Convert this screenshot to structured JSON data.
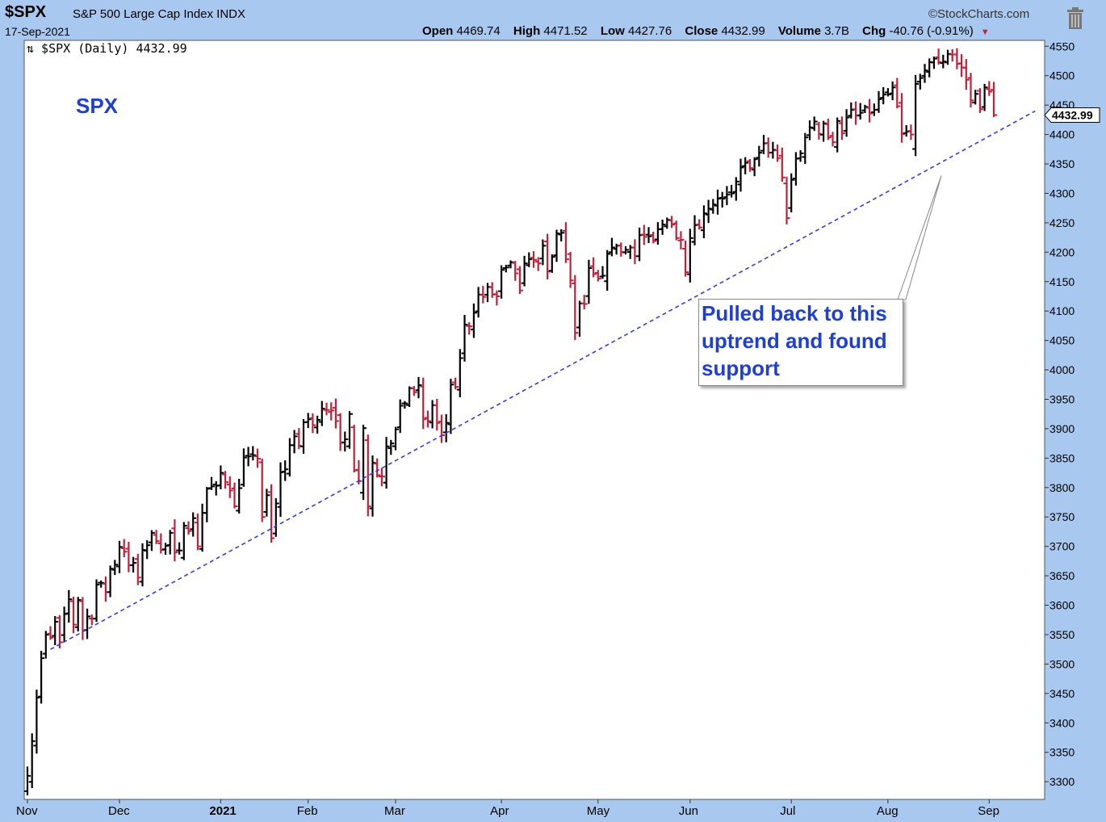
{
  "header": {
    "symbol": "$SPX",
    "description": "S&P 500 Large Cap Index INDX",
    "date": "17-Sep-2021",
    "brand": "©StockCharts.com",
    "open_label": "Open",
    "open": "4469.74",
    "high_label": "High",
    "high": "4471.52",
    "low_label": "Low",
    "low": "4427.76",
    "close_label": "Close",
    "close": "4432.99",
    "volume_label": "Volume",
    "volume": "3.7B",
    "chg_label": "Chg",
    "chg": "-40.76 (-0.91%)"
  },
  "annotation": "Pulled back to this\nuptrend and found\nsupport",
  "colors": {
    "up": "#000000",
    "down": "#c0203a",
    "trend": "#3b3bdc",
    "annotation": "#1e3fd4",
    "frame": "#a9c8ef"
  },
  "icons": {
    "trash": "trash-icon",
    "legend": "up-down-arrows-icon"
  },
  "chart_data": {
    "type": "ohlc",
    "legend_label": "$SPX (Daily) 4432.99",
    "symbol_label": "SPX",
    "last_value_label": "4432.99",
    "ylim": [
      3270,
      4560
    ],
    "y_ticks": [
      3300,
      3350,
      3400,
      3450,
      3500,
      3550,
      3600,
      3650,
      3700,
      3750,
      3800,
      3850,
      3900,
      3950,
      4000,
      4050,
      4100,
      4150,
      4200,
      4250,
      4300,
      4350,
      4400,
      4450,
      4500,
      4550
    ],
    "x_ticks": [
      {
        "label": "Nov",
        "date": "2020-11-02"
      },
      {
        "label": "Dec",
        "date": "2020-12-01"
      },
      {
        "label": "2021",
        "date": "2021-01-04",
        "bold": true
      },
      {
        "label": "Feb",
        "date": "2021-02-01"
      },
      {
        "label": "Mar",
        "date": "2021-03-01"
      },
      {
        "label": "Apr",
        "date": "2021-04-01"
      },
      {
        "label": "May",
        "date": "2021-05-03"
      },
      {
        "label": "Jun",
        "date": "2021-06-01"
      },
      {
        "label": "Jul",
        "date": "2021-07-01"
      },
      {
        "label": "Aug",
        "date": "2021-08-02"
      },
      {
        "label": "Sep",
        "date": "2021-09-01"
      }
    ],
    "trendline": {
      "start": {
        "date": "2020-11-09",
        "value": 3525
      },
      "end": {
        "date": "2021-09-16",
        "value": 4440
      },
      "style": "dashed"
    },
    "closes": [
      3310,
      3369,
      3443,
      3510,
      3550,
      3545,
      3572,
      3537,
      3585,
      3610,
      3567,
      3609,
      3557,
      3581,
      3577,
      3635,
      3638,
      3622,
      3662,
      3669,
      3699,
      3691,
      3668,
      3672,
      3647,
      3694,
      3702,
      3723,
      3709,
      3694,
      3701,
      3723,
      3690,
      3693,
      3735,
      3726,
      3748,
      3700,
      3757,
      3798,
      3802,
      3803,
      3825,
      3809,
      3795,
      3768,
      3799,
      3851,
      3853,
      3855,
      3849,
      3750,
      3787,
      3714,
      3773,
      3826,
      3831,
      3872,
      3887,
      3871,
      3911,
      3916,
      3906,
      3915,
      3934,
      3932,
      3931,
      3913,
      3876,
      3882,
      3925,
      3829,
      3811,
      3901,
      3768,
      3842,
      3821,
      3819,
      3870,
      3875,
      3899,
      3939,
      3943,
      3969,
      3962,
      3974,
      3916,
      3913,
      3940,
      3910,
      3889,
      3910,
      3975,
      3971,
      4020,
      4077,
      4074,
      4097,
      4128,
      4124,
      4141,
      4128,
      4125,
      4170,
      4174,
      4183,
      4164,
      4135,
      4181,
      4188,
      4187,
      4181,
      4211,
      4167,
      4192,
      4232,
      4233,
      4188,
      4152,
      4063,
      4113,
      4112,
      4173,
      4163,
      4155,
      4160,
      4197,
      4208,
      4211,
      4200,
      4204,
      4208,
      4193,
      4229,
      4226,
      4227,
      4219,
      4239,
      4247,
      4255,
      4247,
      4224,
      4221,
      4166,
      4224,
      4246,
      4242,
      4266,
      4274,
      4281,
      4291,
      4291,
      4298,
      4300,
      4320,
      4344,
      4352,
      4343,
      4358,
      4369,
      4385,
      4369,
      4374,
      4360,
      4327,
      4258,
      4323,
      4359,
      4368,
      4395,
      4412,
      4422,
      4401,
      4419,
      4395,
      4387,
      4423,
      4402,
      4429,
      4442,
      4432,
      4437,
      4447,
      4436,
      4442,
      4460,
      4468,
      4468,
      4480,
      4448,
      4401,
      4405,
      4400,
      4486,
      4496,
      4509,
      4523,
      4529,
      4523,
      4524,
      4537,
      4536,
      4520,
      4514,
      4493,
      4458,
      4469,
      4443,
      4480,
      4473,
      4433
    ]
  }
}
